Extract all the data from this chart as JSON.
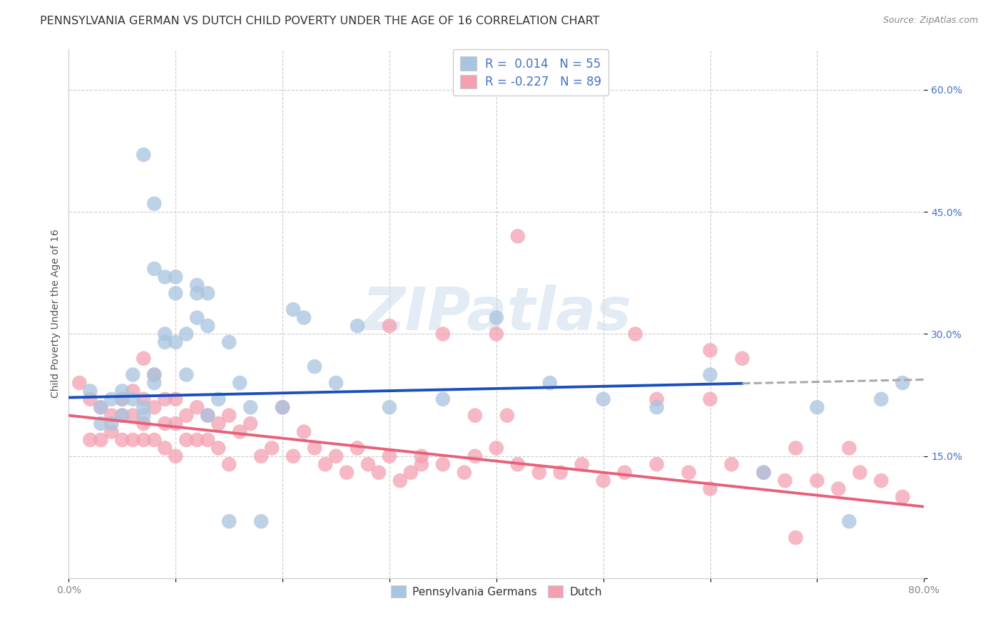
{
  "title": "PENNSYLVANIA GERMAN VS DUTCH CHILD POVERTY UNDER THE AGE OF 16 CORRELATION CHART",
  "source": "Source: ZipAtlas.com",
  "ylabel": "Child Poverty Under the Age of 16",
  "xlim": [
    0.0,
    0.8
  ],
  "ylim": [
    0.0,
    0.65
  ],
  "yticks": [
    0.0,
    0.15,
    0.3,
    0.45,
    0.6
  ],
  "ytick_labels": [
    "",
    "15.0%",
    "30.0%",
    "45.0%",
    "60.0%"
  ],
  "xticks": [
    0.0,
    0.1,
    0.2,
    0.3,
    0.4,
    0.5,
    0.6,
    0.7,
    0.8
  ],
  "xtick_labels": [
    "0.0%",
    "",
    "",
    "",
    "",
    "",
    "",
    "",
    "80.0%"
  ],
  "legend_label1": "Pennsylvania Germans",
  "legend_label2": "Dutch",
  "R1": "0.014",
  "N1": "55",
  "R2": "-0.227",
  "N2": "89",
  "blue_color": "#A8C4E0",
  "pink_color": "#F4A0B0",
  "blue_line_color": "#1B4FBE",
  "pink_line_color": "#E8607A",
  "gray_dash_color": "#AAAAAA",
  "watermark_color": "#C8D8EC",
  "tick_color_y": "#4472C4",
  "tick_color_x": "#888888",
  "title_fontsize": 11.5,
  "axis_label_fontsize": 10,
  "tick_fontsize": 10,
  "blue_line_solid_end": 0.63,
  "blue_line_start_y": 0.222,
  "blue_line_end_y": 0.244,
  "pink_line_start_y": 0.2,
  "pink_line_end_y": 0.088,
  "blue_x": [
    0.02,
    0.03,
    0.04,
    0.05,
    0.05,
    0.06,
    0.06,
    0.07,
    0.07,
    0.08,
    0.08,
    0.09,
    0.09,
    0.1,
    0.1,
    0.11,
    0.11,
    0.12,
    0.12,
    0.13,
    0.13,
    0.14,
    0.15,
    0.16,
    0.17,
    0.18,
    0.2,
    0.21,
    0.22,
    0.23,
    0.25,
    0.27,
    0.3,
    0.35,
    0.4,
    0.45,
    0.5,
    0.55,
    0.6,
    0.65,
    0.7,
    0.73,
    0.76,
    0.78,
    0.03,
    0.04,
    0.05,
    0.07,
    0.08,
    0.08,
    0.09,
    0.1,
    0.12,
    0.13,
    0.15
  ],
  "blue_y": [
    0.23,
    0.21,
    0.22,
    0.22,
    0.2,
    0.25,
    0.22,
    0.52,
    0.21,
    0.46,
    0.24,
    0.37,
    0.3,
    0.37,
    0.35,
    0.3,
    0.25,
    0.36,
    0.32,
    0.35,
    0.31,
    0.22,
    0.29,
    0.24,
    0.21,
    0.07,
    0.21,
    0.33,
    0.32,
    0.26,
    0.24,
    0.31,
    0.21,
    0.22,
    0.32,
    0.24,
    0.22,
    0.21,
    0.25,
    0.13,
    0.21,
    0.07,
    0.22,
    0.24,
    0.19,
    0.19,
    0.23,
    0.2,
    0.38,
    0.25,
    0.29,
    0.29,
    0.35,
    0.2,
    0.07
  ],
  "pink_x": [
    0.01,
    0.02,
    0.02,
    0.03,
    0.03,
    0.04,
    0.04,
    0.05,
    0.05,
    0.05,
    0.06,
    0.06,
    0.06,
    0.07,
    0.07,
    0.07,
    0.07,
    0.08,
    0.08,
    0.08,
    0.09,
    0.09,
    0.09,
    0.1,
    0.1,
    0.1,
    0.11,
    0.11,
    0.12,
    0.12,
    0.13,
    0.13,
    0.14,
    0.14,
    0.15,
    0.15,
    0.16,
    0.17,
    0.18,
    0.19,
    0.2,
    0.21,
    0.22,
    0.23,
    0.24,
    0.25,
    0.26,
    0.27,
    0.28,
    0.29,
    0.3,
    0.31,
    0.32,
    0.33,
    0.35,
    0.37,
    0.38,
    0.4,
    0.42,
    0.44,
    0.46,
    0.48,
    0.5,
    0.52,
    0.55,
    0.58,
    0.6,
    0.62,
    0.65,
    0.67,
    0.7,
    0.72,
    0.74,
    0.76,
    0.78,
    0.4,
    0.42,
    0.55,
    0.6,
    0.63,
    0.68,
    0.3,
    0.33,
    0.35,
    0.38,
    0.41,
    0.53,
    0.6,
    0.68,
    0.73
  ],
  "pink_y": [
    0.24,
    0.22,
    0.17,
    0.21,
    0.17,
    0.2,
    0.18,
    0.22,
    0.2,
    0.17,
    0.23,
    0.2,
    0.17,
    0.27,
    0.22,
    0.19,
    0.17,
    0.25,
    0.21,
    0.17,
    0.22,
    0.19,
    0.16,
    0.22,
    0.19,
    0.15,
    0.2,
    0.17,
    0.21,
    0.17,
    0.2,
    0.17,
    0.19,
    0.16,
    0.2,
    0.14,
    0.18,
    0.19,
    0.15,
    0.16,
    0.21,
    0.15,
    0.18,
    0.16,
    0.14,
    0.15,
    0.13,
    0.16,
    0.14,
    0.13,
    0.15,
    0.12,
    0.13,
    0.15,
    0.14,
    0.13,
    0.15,
    0.16,
    0.14,
    0.13,
    0.13,
    0.14,
    0.12,
    0.13,
    0.14,
    0.13,
    0.11,
    0.14,
    0.13,
    0.12,
    0.12,
    0.11,
    0.13,
    0.12,
    0.1,
    0.3,
    0.42,
    0.22,
    0.28,
    0.27,
    0.16,
    0.31,
    0.14,
    0.3,
    0.2,
    0.2,
    0.3,
    0.22,
    0.05,
    0.16
  ]
}
